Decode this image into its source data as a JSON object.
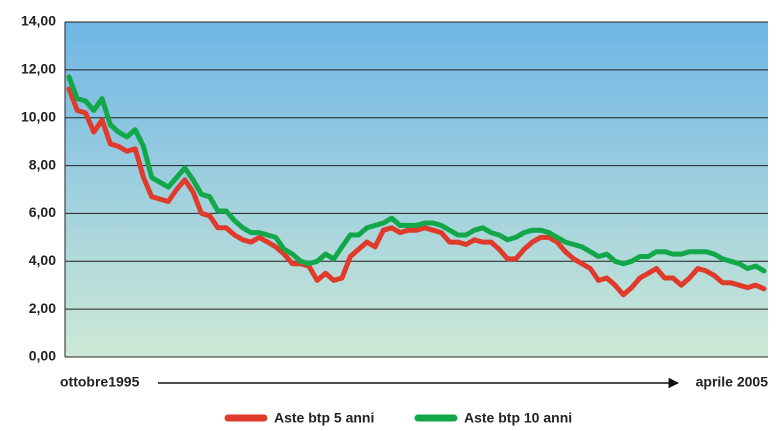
{
  "chart_data": {
    "type": "line",
    "categories": [
      null,
      null,
      null,
      null,
      null,
      null,
      null,
      null,
      null,
      null,
      null,
      null,
      null,
      null,
      null,
      null,
      null,
      null,
      null,
      null,
      null,
      null,
      null,
      null,
      null,
      null,
      null,
      null,
      null,
      null,
      null,
      null,
      null,
      null,
      null,
      null,
      null,
      null,
      null,
      null,
      null,
      null,
      null,
      null,
      null,
      null,
      null,
      null,
      null,
      null,
      null,
      null,
      null,
      null,
      null,
      null,
      null,
      null,
      null,
      null,
      null,
      null,
      null,
      null,
      null,
      null,
      null,
      null,
      null,
      null,
      null,
      null,
      null,
      null,
      null,
      null,
      null,
      null,
      null,
      null,
      null,
      null,
      null,
      null,
      null
    ],
    "x_start_label": "ottobre1995",
    "x_end_label": "aprile 2005",
    "series": [
      {
        "name": "Aste btp 5 anni",
        "color": "#e03a2a",
        "values": [
          11.2,
          10.3,
          10.2,
          9.4,
          9.9,
          8.9,
          8.8,
          8.6,
          8.7,
          7.5,
          6.7,
          6.6,
          6.5,
          7.0,
          7.4,
          6.9,
          6.0,
          5.9,
          5.4,
          5.4,
          5.1,
          4.9,
          4.8,
          5.0,
          4.8,
          4.6,
          4.3,
          3.9,
          3.9,
          3.8,
          3.2,
          3.5,
          3.2,
          3.3,
          4.2,
          4.5,
          4.8,
          4.6,
          5.3,
          5.4,
          5.2,
          5.3,
          5.3,
          5.4,
          5.3,
          5.2,
          4.8,
          4.8,
          4.7,
          4.9,
          4.8,
          4.8,
          4.5,
          4.1,
          4.1,
          4.5,
          4.8,
          5.0,
          5.0,
          4.8,
          4.4,
          4.1,
          3.9,
          3.7,
          3.2,
          3.3,
          3.0,
          2.6,
          2.9,
          3.3,
          3.5,
          3.7,
          3.3,
          3.3,
          3.0,
          3.3,
          3.7,
          3.6,
          3.4,
          3.1,
          3.1,
          3.0,
          2.9,
          3.0,
          2.85
        ]
      },
      {
        "name": "Aste btp 10 anni",
        "color": "#12a84a",
        "values": [
          11.7,
          10.8,
          10.7,
          10.3,
          10.8,
          9.7,
          9.4,
          9.2,
          9.5,
          8.8,
          7.5,
          7.3,
          7.1,
          7.5,
          7.9,
          7.4,
          6.8,
          6.7,
          6.1,
          6.1,
          5.7,
          5.4,
          5.2,
          5.2,
          5.1,
          5.0,
          4.5,
          4.3,
          4.0,
          3.9,
          4.0,
          4.3,
          4.1,
          4.6,
          5.1,
          5.1,
          5.4,
          5.5,
          5.6,
          5.8,
          5.5,
          5.5,
          5.5,
          5.6,
          5.6,
          5.5,
          5.3,
          5.1,
          5.1,
          5.3,
          5.4,
          5.2,
          5.1,
          4.9,
          5.0,
          5.2,
          5.3,
          5.3,
          5.2,
          5.0,
          4.8,
          4.7,
          4.6,
          4.4,
          4.2,
          4.3,
          4.0,
          3.9,
          4.0,
          4.2,
          4.2,
          4.4,
          4.4,
          4.3,
          4.3,
          4.4,
          4.4,
          4.4,
          4.3,
          4.1,
          4.0,
          3.9,
          3.7,
          3.8,
          3.6
        ]
      }
    ],
    "ylim": [
      0,
      14
    ],
    "yticks": [
      {
        "value": 0,
        "label": "0,00"
      },
      {
        "value": 2,
        "label": "2,00"
      },
      {
        "value": 4,
        "label": "4,00"
      },
      {
        "value": 6,
        "label": "6,00"
      },
      {
        "value": 8,
        "label": "8,00"
      },
      {
        "value": 10,
        "label": "10,00"
      },
      {
        "value": 12,
        "label": "12,00"
      },
      {
        "value": 14,
        "label": "14,00"
      }
    ],
    "grid": true,
    "legend": "bottom"
  }
}
